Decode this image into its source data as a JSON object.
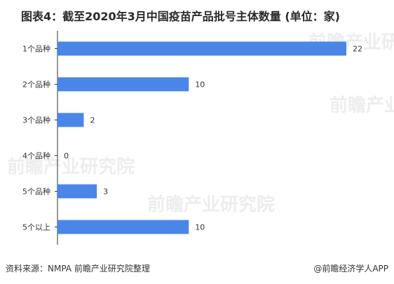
{
  "title": "图表4：截至2020年3月中国疫苗产品批号主体数量 (单位：家)",
  "watermark": "前瞻产业研究院",
  "source": "资料来源：NMPA 前瞻产业研究院整理",
  "credit": "@前瞻经济学人APP",
  "colors": {
    "bar": "#4a86e8",
    "axis": "#333333"
  },
  "chart_data": {
    "type": "bar",
    "orientation": "horizontal",
    "categories": [
      "1个品种",
      "2个品种",
      "3个品种",
      "4个品种",
      "5个品种",
      "5个以上"
    ],
    "values": [
      22,
      10,
      2,
      0,
      3,
      10
    ],
    "xlim": [
      0,
      22
    ],
    "grid": false,
    "legend": "none"
  }
}
